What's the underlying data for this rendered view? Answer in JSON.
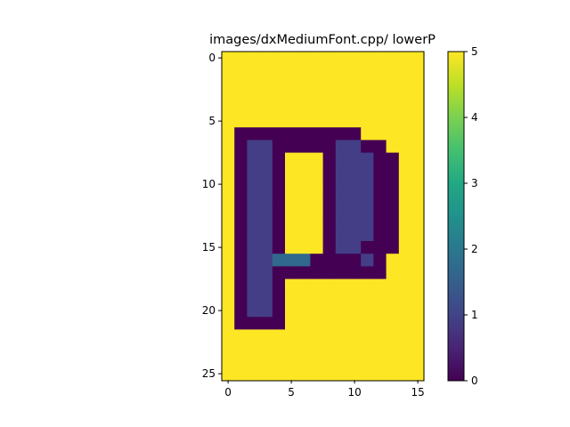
{
  "chart_data": {
    "type": "heatmap",
    "title": "images/dxMediumFont.cpp/ lowerP",
    "xlabel": "",
    "ylabel": "",
    "colormap": "viridis",
    "value_range": [
      0,
      5
    ],
    "x_ticks": [
      0,
      5,
      10,
      15
    ],
    "y_ticks": [
      0,
      5,
      10,
      15,
      20,
      25
    ],
    "colorbar_ticks": [
      0,
      1,
      2,
      3,
      4,
      5
    ],
    "grid": false,
    "colors": {
      "v0": "#440154",
      "v1": "#433e85",
      "v1_5": "#31688e",
      "v5": "#fde725"
    },
    "rows": [
      "5555555555555555",
      "5555555555555555",
      "5555555555555555",
      "5555555555555555",
      "5555555555555555",
      "5555555555555555",
      "5000000000055555",
      "5011000001100555",
      "5011055501110055",
      "5011055501110055",
      "5011055501110055",
      "5011055501110055",
      "5011055501110055",
      "5011055501110055",
      "5011055501110055",
      "5011055501100055",
      "5011222000010555",
      "5011000000000555",
      "5011055555555555",
      "5011055555555555",
      "5011055555555555",
      "5000055555555555",
      "5555555555555555",
      "5555555555555555",
      "5555555555555555",
      "5555555555555555"
    ]
  }
}
